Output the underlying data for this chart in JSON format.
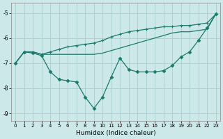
{
  "xlabel": "Humidex (Indice chaleur)",
  "bg_color": "#cce8e8",
  "line_color": "#1a7a6a",
  "grid_color": "#aacfcf",
  "xlim": [
    -0.5,
    23.5
  ],
  "ylim": [
    -9.3,
    -4.6
  ],
  "yticks": [
    -9,
    -8,
    -7,
    -6,
    -5
  ],
  "xticks": [
    0,
    1,
    2,
    3,
    4,
    5,
    6,
    7,
    8,
    9,
    10,
    11,
    12,
    13,
    14,
    15,
    16,
    17,
    18,
    19,
    20,
    21,
    22,
    23
  ],
  "line1_x": [
    0,
    1,
    2,
    3,
    4,
    5,
    6,
    7,
    8,
    9,
    10,
    11,
    12,
    13,
    14,
    15,
    16,
    17,
    18,
    19,
    20,
    21,
    22,
    23
  ],
  "line1_y": [
    -7.0,
    -6.55,
    -6.55,
    -6.65,
    -6.65,
    -6.65,
    -6.65,
    -6.65,
    -6.65,
    -6.65,
    -6.6,
    -6.5,
    -6.4,
    -6.3,
    -6.2,
    -6.1,
    -6.0,
    -5.9,
    -5.8,
    -5.75,
    -5.75,
    -5.7,
    -5.65,
    -5.05
  ],
  "line2_x": [
    0,
    1,
    2,
    3,
    4,
    5,
    6,
    7,
    8,
    9,
    10,
    11,
    12,
    13,
    14,
    15,
    16,
    17,
    18,
    19,
    20,
    21,
    22,
    23
  ],
  "line2_y": [
    -7.0,
    -6.55,
    -6.55,
    -6.65,
    -6.55,
    -6.45,
    -6.35,
    -6.3,
    -6.25,
    -6.2,
    -6.1,
    -5.95,
    -5.85,
    -5.75,
    -5.7,
    -5.65,
    -5.6,
    -5.55,
    -5.55,
    -5.5,
    -5.5,
    -5.45,
    -5.4,
    -5.05
  ],
  "line3_x": [
    0,
    1,
    2,
    3,
    4,
    5,
    6,
    7,
    8,
    9,
    10,
    11,
    12,
    13,
    14,
    15,
    16,
    17,
    18,
    19,
    20,
    21,
    22,
    23
  ],
  "line3_y": [
    -7.0,
    -6.55,
    -6.6,
    -6.7,
    -7.35,
    -7.65,
    -7.7,
    -7.75,
    -8.35,
    -8.8,
    -8.35,
    -7.55,
    -6.8,
    -7.25,
    -7.35,
    -7.35,
    -7.35,
    -7.3,
    -7.1,
    -6.75,
    -6.55,
    -6.1,
    -5.6,
    -5.05
  ]
}
